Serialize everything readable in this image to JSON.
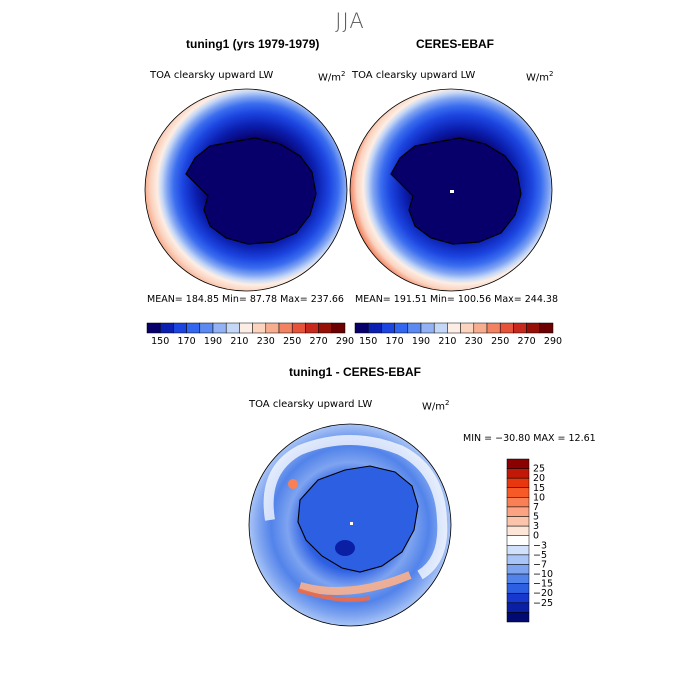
{
  "season": "JJA",
  "panels": [
    {
      "title": "tuning1 (yrs 1979-1979)",
      "variable": "TOA clearsky upward LW",
      "units": "W/m",
      "units_exp": "2",
      "stats": "MEAN=  184.85    Min=   87.78    Max=  237.66"
    },
    {
      "title": "CERES-EBAF",
      "variable": "TOA clearsky upward LW",
      "units": "W/m",
      "units_exp": "2",
      "stats": "MEAN=  191.51    Min=  100.56    Max=  244.38"
    }
  ],
  "abs_colorbar": {
    "labels": [
      "150",
      "170",
      "190",
      "210",
      "230",
      "250",
      "270",
      "290"
    ],
    "colors": [
      "#08006a",
      "#0b1fb0",
      "#1c45e0",
      "#3266ee",
      "#5b8af0",
      "#92b2f3",
      "#c4d7f7",
      "#fdeee5",
      "#fbd3bf",
      "#f7ae90",
      "#f28362",
      "#e4533a",
      "#c72a1d",
      "#961008",
      "#6a0000"
    ]
  },
  "diff": {
    "title": "tuning1 - CERES-EBAF",
    "variable": "TOA clearsky upward LW",
    "units": "W/m",
    "units_exp": "2",
    "minmax": "MIN = −30.80  MAX =   12.61",
    "colorbar": {
      "labels": [
        "25",
        "20",
        "15",
        "10",
        "7",
        "5",
        "3",
        "0",
        "−3",
        "−5",
        "−7",
        "−10",
        "−15",
        "−20",
        "−25"
      ],
      "colors": [
        "#8b0000",
        "#c21807",
        "#e8360e",
        "#f75a26",
        "#f98055",
        "#fba382",
        "#fcc4aa",
        "#fde6d8",
        "#ffffff",
        "#d2e1fb",
        "#a9c4f6",
        "#7ea4f0",
        "#5283ea",
        "#2d5fe3",
        "#1638cf",
        "#0a1fa4",
        "#000a72"
      ]
    }
  }
}
